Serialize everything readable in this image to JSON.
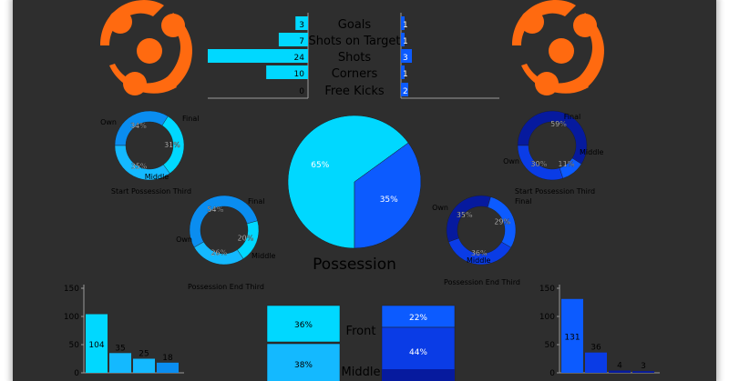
{
  "colors": {
    "background": "#2e2e2e",
    "logo": "#ff6a10",
    "home_light": "#00d8ff",
    "home_mid": "#14b9ff",
    "home_dark": "#0a8df0",
    "away_light": "#0c5bff",
    "away_mid": "#0a3ce6",
    "away_dark": "#061a9e",
    "axis": "#9a9a9a",
    "text": "#000000"
  },
  "logos": {
    "left": "team-logo",
    "right": "team-logo"
  },
  "chart_data": [
    {
      "type": "bar",
      "id": "stats-comparison",
      "categories": [
        "Goals",
        "Shots on Target",
        "Shots",
        "Corners",
        "Free Kicks"
      ],
      "series": [
        {
          "values": [
            3,
            7,
            24,
            10,
            0
          ]
        },
        {
          "values": [
            1,
            1,
            3,
            1,
            2
          ]
        }
      ],
      "title": "",
      "xlabel": "",
      "ylabel": ""
    },
    {
      "type": "pie",
      "id": "possession",
      "title": "Possession",
      "values": [
        65,
        35
      ],
      "labels": [
        "65%",
        "35%"
      ]
    },
    {
      "type": "pie",
      "id": "home-start-third",
      "title": "Start Possession Third",
      "categories": [
        "Own",
        "Final",
        "Middle"
      ],
      "values": [
        34,
        31,
        35
      ],
      "labels": [
        "34%",
        "31%",
        "35%"
      ]
    },
    {
      "type": "pie",
      "id": "home-end-third",
      "title": "Possession End Third",
      "categories": [
        "Own",
        "Final",
        "Middle"
      ],
      "values": [
        54,
        20,
        26
      ],
      "labels": [
        "54%",
        "20%",
        "26%"
      ]
    },
    {
      "type": "pie",
      "id": "away-start-third",
      "title": "Start Possession Third",
      "categories": [
        "Own",
        "Final",
        "Middle"
      ],
      "values": [
        59,
        11,
        30
      ],
      "labels": [
        "59%",
        "11%",
        "30%"
      ]
    },
    {
      "type": "pie",
      "id": "away-end-third",
      "title": "Possession End Third",
      "categories": [
        "Own",
        "Final",
        "Middle"
      ],
      "values": [
        35,
        29,
        36
      ],
      "labels": [
        "35%",
        "29%",
        "36%"
      ]
    },
    {
      "type": "bar",
      "id": "home-bar",
      "values": [
        104,
        35,
        25,
        18
      ],
      "yticks": [
        "0",
        "50",
        "100",
        "150"
      ],
      "ylim": [
        0,
        150
      ]
    },
    {
      "type": "bar",
      "id": "away-bar",
      "values": [
        131,
        36,
        4,
        3
      ],
      "yticks": [
        "0",
        "50",
        "100",
        "150"
      ],
      "ylim": [
        0,
        150
      ]
    },
    {
      "type": "bar",
      "id": "zone-share",
      "categories": [
        "Front",
        "Middle"
      ],
      "series": [
        {
          "values": [
            36,
            38
          ],
          "labels": [
            "36%",
            "38%"
          ]
        },
        {
          "values": [
            22,
            44
          ],
          "labels": [
            "22%",
            "44%"
          ]
        }
      ]
    }
  ]
}
